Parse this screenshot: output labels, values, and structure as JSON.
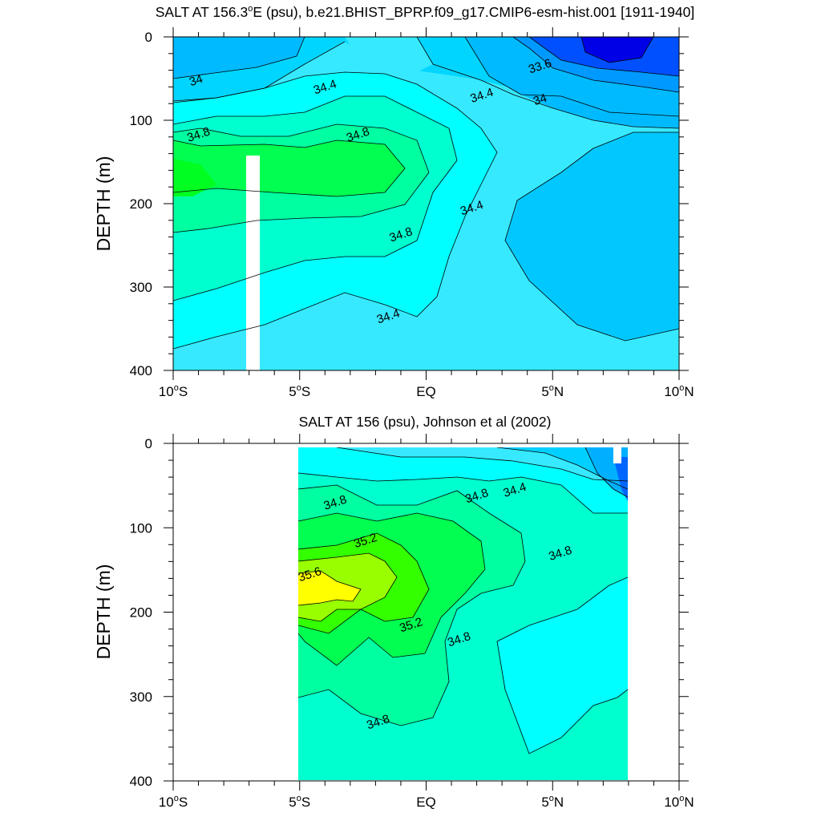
{
  "colors": {
    "lt_33_6": "#0000e6",
    "c33_6_34": "#0050ff",
    "c34_34_4": "#00a6ff",
    "c34_4_34_8": "#00d0ff",
    "c34_8_35_0": "#00e6ff",
    "c35_0_35_2": "#00ffe0",
    "c35_2_35_6": "#00ff50",
    "c35_6_35_8": "#99ff00",
    "gt_35_8": "#ffff00",
    "c34_2_34_4": "#37e9ff",
    "c34_0_34_2": "#00baff",
    "missing": "#ffffff",
    "contour_line": "#000000"
  },
  "chart_data": [
    {
      "type": "contour",
      "title": "SALT AT 156.3°E (psu), b.e21.BHIST_BPRP.f09_g17.CMIP6-esm-hist.001 [1911-1940]",
      "title_prefix": "SALT AT 156.3",
      "title_sup": "o",
      "title_suffix": "E (psu), b.e21.BHIST_BPRP.f09_g17.CMIP6-esm-hist.001 [1911-1940]",
      "ylabel": "DEPTH (m)",
      "xlabel": "",
      "x_ticks": [
        "10°S",
        "5°S",
        "EQ",
        "5°N",
        "10°N"
      ],
      "x_range": [
        -10,
        10
      ],
      "y_ticks": [
        "0",
        "100",
        "200",
        "300",
        "400"
      ],
      "y_range": [
        0,
        400
      ],
      "y_reversed": true,
      "contour_labels": [
        {
          "text": "33.6",
          "lat": 4.5,
          "depth": 35
        },
        {
          "text": "34",
          "lat": -9.1,
          "depth": 52
        },
        {
          "text": "34",
          "lat": 4.5,
          "depth": 75
        },
        {
          "text": "34.4",
          "lat": -4.0,
          "depth": 60
        },
        {
          "text": "34.4",
          "lat": 2.2,
          "depth": 70
        },
        {
          "text": "34.4",
          "lat": 1.8,
          "depth": 205
        },
        {
          "text": "34.4",
          "lat": -1.5,
          "depth": 335
        },
        {
          "text": "34.8",
          "lat": -9.0,
          "depth": 117
        },
        {
          "text": "34.8",
          "lat": -2.7,
          "depth": 117
        },
        {
          "text": "34.8",
          "lat": -1.0,
          "depth": 237
        }
      ]
    },
    {
      "type": "contour",
      "title": "SALT AT 156 (psu), Johnson et al (2002)",
      "ylabel": "DEPTH (m)",
      "xlabel": "",
      "x_ticks": [
        "10°S",
        "5°S",
        "EQ",
        "5°N",
        "10°N"
      ],
      "x_range": [
        -10,
        10
      ],
      "y_ticks": [
        "0",
        "100",
        "200",
        "300",
        "400"
      ],
      "y_range": [
        0,
        400
      ],
      "y_reversed": true,
      "data_extent": {
        "lat": [
          -5,
          8
        ],
        "depth": [
          5,
          400
        ]
      },
      "contour_labels": [
        {
          "text": "34.4",
          "lat": 3.5,
          "depth": 55
        },
        {
          "text": "34.8",
          "lat": -3.6,
          "depth": 70
        },
        {
          "text": "34.8",
          "lat": 2.0,
          "depth": 62
        },
        {
          "text": "34.8",
          "lat": 5.3,
          "depth": 130
        },
        {
          "text": "34.8",
          "lat": 1.3,
          "depth": 232
        },
        {
          "text": "34.8",
          "lat": -1.9,
          "depth": 330
        },
        {
          "text": "35.2",
          "lat": -2.4,
          "depth": 115
        },
        {
          "text": "35.2",
          "lat": -0.6,
          "depth": 215
        },
        {
          "text": "35.6",
          "lat": -4.6,
          "depth": 155
        }
      ]
    }
  ]
}
